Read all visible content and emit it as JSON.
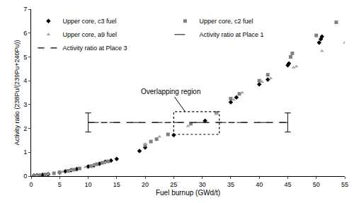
{
  "chart_data": {
    "type": "scatter",
    "x_label": "Fuel burnup (GWd/t)",
    "y_label": "Activity ratio (238Pu/(239Pu+240Pu))",
    "xlim": [
      0,
      55
    ],
    "xticks": [
      0,
      5,
      10,
      15,
      20,
      25,
      30,
      35,
      40,
      45,
      50,
      55
    ],
    "ylim": [
      0,
      7
    ],
    "yticks": [
      0,
      1,
      2,
      3,
      4,
      5,
      6,
      7
    ],
    "grid": false,
    "legend": "top-left",
    "series": [
      {
        "name": "Upper core, c3 fuel",
        "type": "scatter",
        "marker": "diamond",
        "color": "#000000",
        "x": [
          0.5,
          1,
          2,
          3,
          5,
          6,
          7,
          8,
          10,
          11,
          12,
          13,
          14,
          15,
          19,
          20,
          25,
          30.5,
          35,
          36,
          40,
          41.5,
          45,
          45.2,
          50.5,
          50.8,
          51
        ],
        "values": [
          0.02,
          0.03,
          0.05,
          0.08,
          0.15,
          0.2,
          0.25,
          0.3,
          0.4,
          0.45,
          0.52,
          0.6,
          0.65,
          0.72,
          1.05,
          1.2,
          1.72,
          2.32,
          3.1,
          3.3,
          3.85,
          4.05,
          4.65,
          4.72,
          5.6,
          5.75,
          5.85
        ]
      },
      {
        "name": "Upper core, c2 fuel",
        "type": "scatter",
        "marker": "square",
        "color": "#808080",
        "x": [
          0.5,
          1.5,
          2.5,
          4,
          5,
          6.5,
          7.5,
          8.5,
          10.5,
          11.5,
          12.5,
          13.5,
          20,
          21,
          22,
          24,
          28,
          32.5,
          35,
          36.5,
          40,
          41.5,
          45.5,
          45.8,
          50,
          53.5
        ],
        "values": [
          0.02,
          0.04,
          0.07,
          0.12,
          0.16,
          0.22,
          0.27,
          0.32,
          0.42,
          0.5,
          0.56,
          0.62,
          1.3,
          1.45,
          1.55,
          1.75,
          2.2,
          2.65,
          3.25,
          3.45,
          4.0,
          4.25,
          5.0,
          5.15,
          5.9,
          6.45
        ]
      },
      {
        "name": "Upper core, a9 fuel",
        "type": "scatter",
        "marker": "triangle-up",
        "color": "#a6a6a6",
        "x": [
          1,
          3,
          5.5,
          7,
          9.5,
          11,
          13,
          20,
          22.5,
          27.5,
          32.5,
          35.5,
          37,
          40.5,
          42,
          46,
          46.5,
          51,
          55
        ],
        "values": [
          0.03,
          0.08,
          0.18,
          0.25,
          0.38,
          0.46,
          0.58,
          1.35,
          1.65,
          2.1,
          2.6,
          3.2,
          3.5,
          3.95,
          4.1,
          4.55,
          4.6,
          5.25,
          5.6
        ]
      },
      {
        "name": "Activity ratio at Place 1",
        "type": "line",
        "line_style": "longdash",
        "color": "#595959",
        "x": [
          10,
          45
        ],
        "values": [
          2.25,
          2.25
        ],
        "error": [
          0.4,
          0.4
        ]
      },
      {
        "name": "Activity ratio at Place 3",
        "type": "line",
        "line_style": "dash",
        "color": "#262626",
        "x": [
          10,
          45
        ],
        "values": [
          2.25,
          2.25
        ],
        "error": [
          0.4,
          0.4
        ]
      }
    ],
    "annotations": [
      {
        "text": "Overlapping region",
        "region": {
          "x": [
            25,
            33
          ],
          "y": [
            1.75,
            2.7
          ]
        }
      }
    ]
  }
}
